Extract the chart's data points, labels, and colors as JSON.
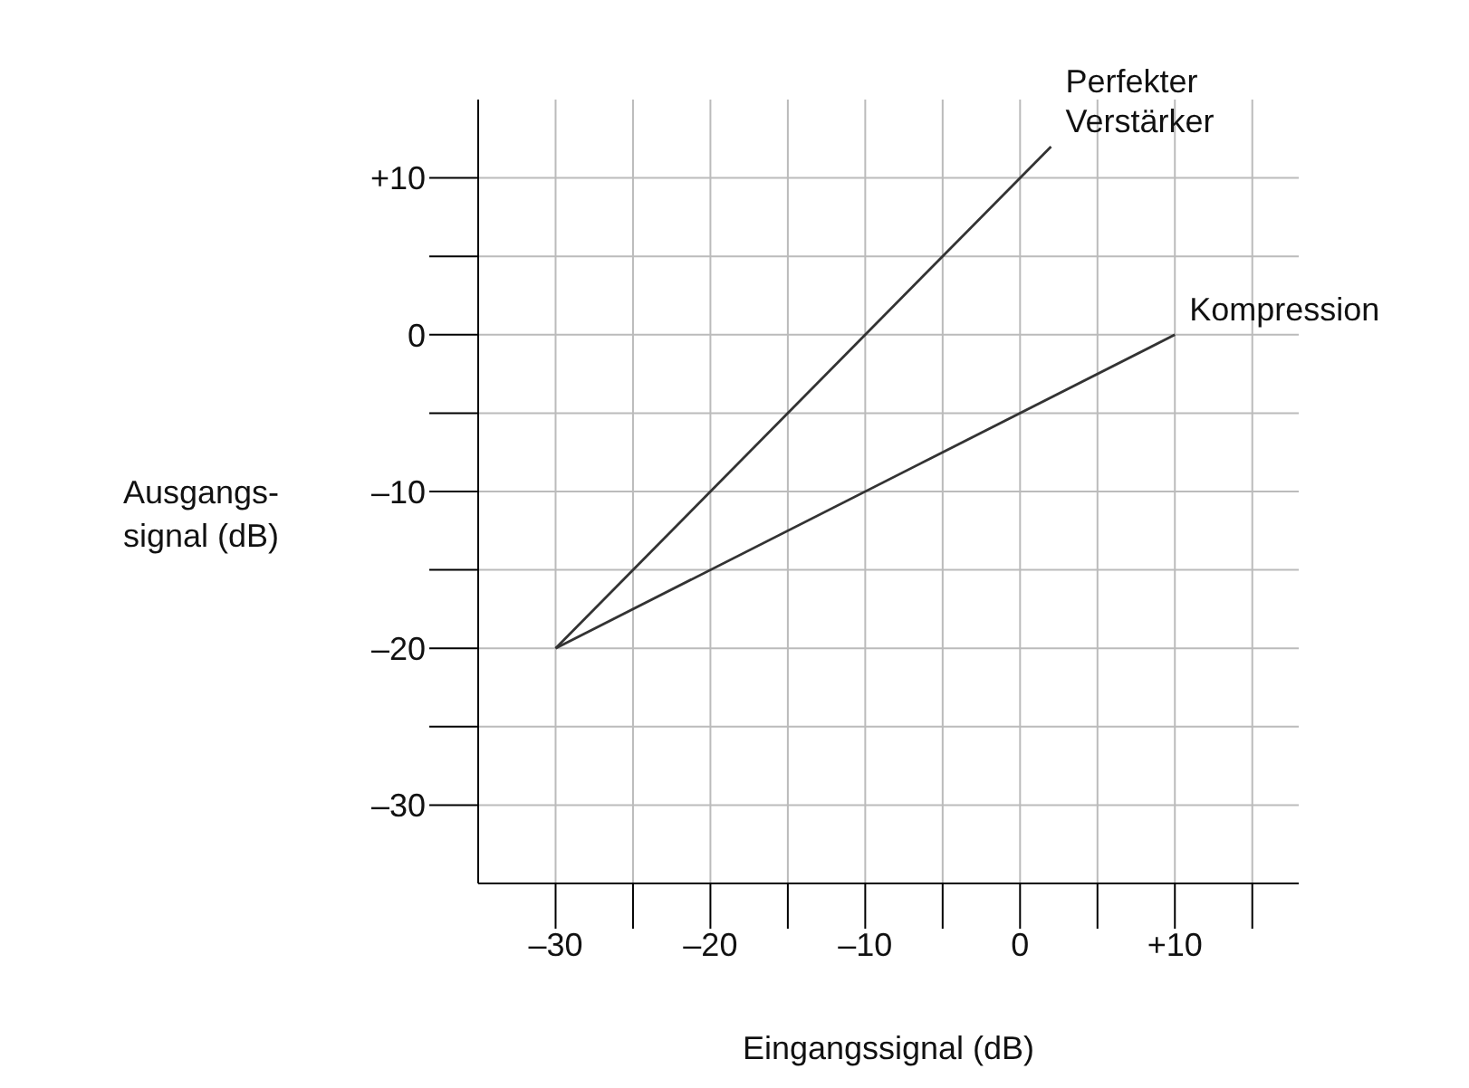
{
  "chart_data": {
    "type": "line",
    "xlabel": "Eingangssignal (dB)",
    "ylabel": "Ausgangs-\nsignal (dB)",
    "xlim": [
      -35,
      18
    ],
    "ylim": [
      -35,
      15
    ],
    "xticks": [
      {
        "value": -30,
        "label": "–30"
      },
      {
        "value": -25,
        "label": null
      },
      {
        "value": -20,
        "label": "–20"
      },
      {
        "value": -15,
        "label": null
      },
      {
        "value": -10,
        "label": "–10"
      },
      {
        "value": -5,
        "label": null
      },
      0,
      {
        "value": 5,
        "label": null
      },
      {
        "value": 10,
        "label": "+10"
      },
      {
        "value": 15,
        "label": null
      }
    ],
    "yticks": [
      {
        "value": -30,
        "label": "–30"
      },
      {
        "value": -25,
        "label": null
      },
      {
        "value": -20,
        "label": "–20"
      },
      {
        "value": -15,
        "label": null
      },
      {
        "value": -10,
        "label": "–10"
      },
      {
        "value": -5,
        "label": null
      },
      0,
      {
        "value": 5,
        "label": null
      },
      {
        "value": 10,
        "label": "+10"
      }
    ],
    "grid": true,
    "marker": "none",
    "line_style": "solid",
    "series": [
      {
        "name": "Perfekter Verstärker",
        "color": "#333333",
        "x": [
          -30,
          2
        ],
        "values": [
          -20,
          12
        ]
      },
      {
        "name": "Kompression",
        "color": "#333333",
        "x": [
          -30,
          10
        ],
        "values": [
          -20,
          0
        ]
      }
    ]
  }
}
